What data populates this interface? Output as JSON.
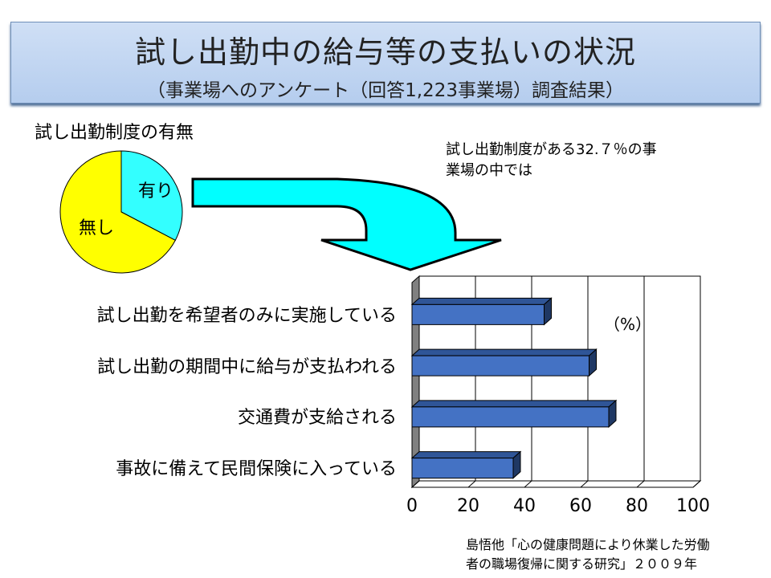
{
  "header": {
    "title": "試し出勤中の給与等の支払いの状況",
    "subtitle": "（事業場へのアンケート（回答1,223事業場）調査結果）"
  },
  "pie_title": "試し出勤制度の有無",
  "note_lines": [
    "試し出勤制度がある32.７％の事",
    "業場の中では"
  ],
  "source_lines": [
    "島悟他「心の健康問題により休業した労働",
    "者の職場復帰に関する研究」２００９年"
  ],
  "chart_data": [
    {
      "type": "pie",
      "title": "試し出勤制度の有無",
      "slices": [
        {
          "label": "有り",
          "value": 32.7,
          "color": "#33FFFF"
        },
        {
          "label": "無し",
          "value": 67.3,
          "color": "#FFFF00"
        }
      ]
    },
    {
      "type": "bar",
      "orientation": "horizontal",
      "style": "3d",
      "categories": [
        "試し出勤を希望者のみに実施している",
        "試し出勤の期間中に給与が支払われる",
        "交通費が支給される",
        "事故に備えて民間保険に入っている"
      ],
      "values": [
        47,
        63,
        70,
        36
      ],
      "unit_label": "（%）",
      "xlim": [
        0,
        100
      ],
      "xticks": [
        "0",
        "20",
        "40",
        "60",
        "80",
        "100"
      ],
      "grid": true,
      "bar_color": "#4472C4"
    }
  ]
}
